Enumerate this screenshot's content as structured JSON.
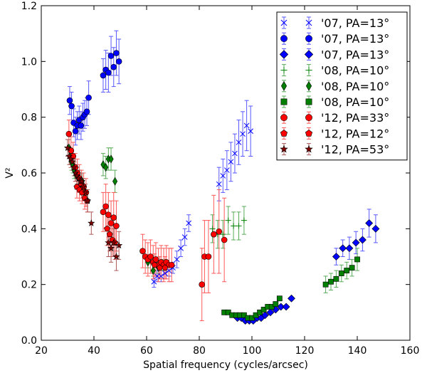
{
  "chart_data": {
    "type": "scatter",
    "title": "",
    "xlabel": "Spatial frequency (cycles/arcsec)",
    "ylabel": "V²",
    "xlim": [
      20,
      160
    ],
    "ylim": [
      0.0,
      1.2
    ],
    "xticks": [
      20,
      40,
      60,
      80,
      100,
      120,
      140,
      160
    ],
    "yticks": [
      0.0,
      0.2,
      0.4,
      0.6,
      0.8,
      1.0,
      1.2
    ],
    "xtick_labels": [
      "20",
      "40",
      "60",
      "80",
      "100",
      "120",
      "140",
      "160"
    ],
    "ytick_labels": [
      "0.0",
      "0.2",
      "0.4",
      "0.6",
      "0.8",
      "1.0",
      "1.2"
    ],
    "grid": false,
    "legend_position": "top-right",
    "series": [
      {
        "name": "'07, PA=13°",
        "color": "#0000ff",
        "marker": "x",
        "points": [
          {
            "x": 62.8,
            "y": 0.21,
            "err": 0.02
          },
          {
            "x": 64.0,
            "y": 0.23,
            "err": 0.02
          },
          {
            "x": 65.5,
            "y": 0.23,
            "err": 0.02
          },
          {
            "x": 67.0,
            "y": 0.24,
            "err": 0.02
          },
          {
            "x": 68.5,
            "y": 0.25,
            "err": 0.02
          },
          {
            "x": 70.0,
            "y": 0.26,
            "err": 0.02
          },
          {
            "x": 71.5,
            "y": 0.29,
            "err": 0.03
          },
          {
            "x": 73.0,
            "y": 0.33,
            "err": 0.03
          },
          {
            "x": 74.5,
            "y": 0.37,
            "err": 0.03
          },
          {
            "x": 76.0,
            "y": 0.42,
            "err": 0.03
          },
          {
            "x": 87.5,
            "y": 0.56,
            "err": 0.06
          },
          {
            "x": 89.0,
            "y": 0.59,
            "err": 0.06
          },
          {
            "x": 90.5,
            "y": 0.61,
            "err": 0.07
          },
          {
            "x": 92.0,
            "y": 0.64,
            "err": 0.07
          },
          {
            "x": 93.5,
            "y": 0.67,
            "err": 0.07
          },
          {
            "x": 95.0,
            "y": 0.71,
            "err": 0.08
          },
          {
            "x": 96.5,
            "y": 0.74,
            "err": 0.08
          },
          {
            "x": 98.0,
            "y": 0.77,
            "err": 0.09
          },
          {
            "x": 99.5,
            "y": 0.75,
            "err": 0.09
          }
        ]
      },
      {
        "name": "'07, PA=13°",
        "color": "#0000ff",
        "marker": "circle",
        "points": [
          {
            "x": 30.8,
            "y": 0.86,
            "err": 0.05
          },
          {
            "x": 31.5,
            "y": 0.84,
            "err": 0.05
          },
          {
            "x": 32.3,
            "y": 0.78,
            "err": 0.05
          },
          {
            "x": 33.0,
            "y": 0.75,
            "err": 0.05
          },
          {
            "x": 33.7,
            "y": 0.77,
            "err": 0.05
          },
          {
            "x": 34.4,
            "y": 0.79,
            "err": 0.05
          },
          {
            "x": 35.1,
            "y": 0.77,
            "err": 0.05
          },
          {
            "x": 35.8,
            "y": 0.8,
            "err": 0.05
          },
          {
            "x": 36.5,
            "y": 0.81,
            "err": 0.05
          },
          {
            "x": 37.3,
            "y": 0.82,
            "err": 0.05
          },
          {
            "x": 38.0,
            "y": 0.87,
            "err": 0.06
          },
          {
            "x": 43.5,
            "y": 0.95,
            "err": 0.06
          },
          {
            "x": 44.5,
            "y": 0.97,
            "err": 0.07
          },
          {
            "x": 45.5,
            "y": 0.96,
            "err": 0.07
          },
          {
            "x": 46.5,
            "y": 1.02,
            "err": 0.07
          },
          {
            "x": 47.5,
            "y": 0.98,
            "err": 0.07
          },
          {
            "x": 48.5,
            "y": 1.03,
            "err": 0.08
          },
          {
            "x": 49.5,
            "y": 1.0,
            "err": 0.08
          }
        ]
      },
      {
        "name": "'07, PA=13°",
        "color": "#0000ff",
        "marker": "diamond",
        "points": [
          {
            "x": 94.5,
            "y": 0.08,
            "err": 0.005
          },
          {
            "x": 96.0,
            "y": 0.08,
            "err": 0.005
          },
          {
            "x": 97.5,
            "y": 0.07,
            "err": 0.005
          },
          {
            "x": 99.0,
            "y": 0.07,
            "err": 0.005
          },
          {
            "x": 100.5,
            "y": 0.07,
            "err": 0.005
          },
          {
            "x": 102.0,
            "y": 0.08,
            "err": 0.005
          },
          {
            "x": 103.5,
            "y": 0.08,
            "err": 0.005
          },
          {
            "x": 105.0,
            "y": 0.09,
            "err": 0.005
          },
          {
            "x": 107.0,
            "y": 0.1,
            "err": 0.005
          },
          {
            "x": 109.0,
            "y": 0.11,
            "err": 0.005
          },
          {
            "x": 111.0,
            "y": 0.12,
            "err": 0.005
          },
          {
            "x": 113.0,
            "y": 0.12,
            "err": 0.005
          },
          {
            "x": 115.0,
            "y": 0.15,
            "err": 0.005
          },
          {
            "x": 132.0,
            "y": 0.3,
            "err": 0.03
          },
          {
            "x": 134.5,
            "y": 0.33,
            "err": 0.03
          },
          {
            "x": 137.0,
            "y": 0.33,
            "err": 0.04
          },
          {
            "x": 139.5,
            "y": 0.35,
            "err": 0.04
          },
          {
            "x": 142.0,
            "y": 0.36,
            "err": 0.04
          },
          {
            "x": 144.5,
            "y": 0.42,
            "err": 0.05
          },
          {
            "x": 147.0,
            "y": 0.4,
            "err": 0.05
          }
        ]
      },
      {
        "name": "'08, PA=10°",
        "color": "#008000",
        "marker": "plus",
        "points": [
          {
            "x": 85.0,
            "y": 0.4,
            "err": 0.05
          },
          {
            "x": 87.0,
            "y": 0.38,
            "err": 0.05
          },
          {
            "x": 89.0,
            "y": 0.38,
            "err": 0.05
          },
          {
            "x": 91.0,
            "y": 0.43,
            "err": 0.05
          },
          {
            "x": 93.0,
            "y": 0.41,
            "err": 0.05
          },
          {
            "x": 95.0,
            "y": 0.41,
            "err": 0.05
          },
          {
            "x": 97.0,
            "y": 0.43,
            "err": 0.05
          }
        ]
      },
      {
        "name": "'08, PA=10°",
        "color": "#008000",
        "marker": "thin-diamond",
        "points": [
          {
            "x": 30.5,
            "y": 0.69,
            "err": 0.03
          },
          {
            "x": 31.0,
            "y": 0.66,
            "err": 0.03
          },
          {
            "x": 31.5,
            "y": 0.64,
            "err": 0.03
          },
          {
            "x": 32.0,
            "y": 0.63,
            "err": 0.03
          },
          {
            "x": 32.5,
            "y": 0.61,
            "err": 0.03
          },
          {
            "x": 33.5,
            "y": 0.59,
            "err": 0.03
          },
          {
            "x": 34.5,
            "y": 0.58,
            "err": 0.03
          },
          {
            "x": 35.5,
            "y": 0.57,
            "err": 0.03
          },
          {
            "x": 43.5,
            "y": 0.63,
            "err": 0.04
          },
          {
            "x": 44.5,
            "y": 0.62,
            "err": 0.04
          },
          {
            "x": 45.5,
            "y": 0.65,
            "err": 0.04
          },
          {
            "x": 46.5,
            "y": 0.65,
            "err": 0.04
          },
          {
            "x": 48.0,
            "y": 0.57,
            "err": 0.04
          },
          {
            "x": 60.5,
            "y": 0.28,
            "err": 0.02
          },
          {
            "x": 62.5,
            "y": 0.25,
            "err": 0.02
          },
          {
            "x": 64.5,
            "y": 0.26,
            "err": 0.02
          },
          {
            "x": 66.5,
            "y": 0.27,
            "err": 0.02
          }
        ]
      },
      {
        "name": "'08, PA=10°",
        "color": "#008000",
        "marker": "square",
        "points": [
          {
            "x": 89.5,
            "y": 0.1,
            "err": 0.005
          },
          {
            "x": 91.0,
            "y": 0.1,
            "err": 0.005
          },
          {
            "x": 92.5,
            "y": 0.09,
            "err": 0.005
          },
          {
            "x": 94.0,
            "y": 0.09,
            "err": 0.005
          },
          {
            "x": 95.5,
            "y": 0.09,
            "err": 0.005
          },
          {
            "x": 97.0,
            "y": 0.09,
            "err": 0.005
          },
          {
            "x": 98.5,
            "y": 0.08,
            "err": 0.005
          },
          {
            "x": 100.0,
            "y": 0.08,
            "err": 0.005
          },
          {
            "x": 101.5,
            "y": 0.09,
            "err": 0.005
          },
          {
            "x": 103.0,
            "y": 0.1,
            "err": 0.005
          },
          {
            "x": 104.5,
            "y": 0.11,
            "err": 0.005
          },
          {
            "x": 106.0,
            "y": 0.12,
            "err": 0.005
          },
          {
            "x": 107.5,
            "y": 0.12,
            "err": 0.005
          },
          {
            "x": 109.0,
            "y": 0.13,
            "err": 0.005
          },
          {
            "x": 110.5,
            "y": 0.15,
            "err": 0.005
          },
          {
            "x": 128.0,
            "y": 0.2,
            "err": 0.03
          },
          {
            "x": 130.0,
            "y": 0.21,
            "err": 0.03
          },
          {
            "x": 132.0,
            "y": 0.22,
            "err": 0.03
          },
          {
            "x": 134.0,
            "y": 0.24,
            "err": 0.03
          },
          {
            "x": 136.0,
            "y": 0.25,
            "err": 0.03
          },
          {
            "x": 138.0,
            "y": 0.26,
            "err": 0.03
          },
          {
            "x": 140.0,
            "y": 0.29,
            "err": 0.04
          }
        ]
      },
      {
        "name": "'12, PA=33°",
        "color": "#ff0000",
        "marker": "circle",
        "points": [
          {
            "x": 30.5,
            "y": 0.74,
            "err": 0.05
          },
          {
            "x": 31.3,
            "y": 0.68,
            "err": 0.05
          },
          {
            "x": 32.1,
            "y": 0.66,
            "err": 0.05
          },
          {
            "x": 32.9,
            "y": 0.62,
            "err": 0.05
          },
          {
            "x": 33.7,
            "y": 0.6,
            "err": 0.05
          },
          {
            "x": 34.5,
            "y": 0.58,
            "err": 0.05
          },
          {
            "x": 35.3,
            "y": 0.56,
            "err": 0.05
          },
          {
            "x": 36.1,
            "y": 0.55,
            "err": 0.05
          },
          {
            "x": 37.0,
            "y": 0.53,
            "err": 0.05
          },
          {
            "x": 43.5,
            "y": 0.46,
            "err": 0.07
          },
          {
            "x": 44.5,
            "y": 0.48,
            "err": 0.08
          },
          {
            "x": 45.5,
            "y": 0.45,
            "err": 0.08
          },
          {
            "x": 46.5,
            "y": 0.42,
            "err": 0.08
          },
          {
            "x": 47.5,
            "y": 0.44,
            "err": 0.09
          },
          {
            "x": 48.5,
            "y": 0.41,
            "err": 0.09
          },
          {
            "x": 58.5,
            "y": 0.32,
            "err": 0.06
          },
          {
            "x": 59.5,
            "y": 0.3,
            "err": 0.06
          },
          {
            "x": 60.5,
            "y": 0.29,
            "err": 0.06
          },
          {
            "x": 61.5,
            "y": 0.3,
            "err": 0.06
          },
          {
            "x": 62.5,
            "y": 0.28,
            "err": 0.06
          },
          {
            "x": 63.5,
            "y": 0.29,
            "err": 0.06
          },
          {
            "x": 64.5,
            "y": 0.27,
            "err": 0.06
          },
          {
            "x": 65.5,
            "y": 0.28,
            "err": 0.06
          },
          {
            "x": 66.5,
            "y": 0.27,
            "err": 0.06
          },
          {
            "x": 67.5,
            "y": 0.28,
            "err": 0.06
          },
          {
            "x": 68.5,
            "y": 0.27,
            "err": 0.06
          },
          {
            "x": 69.5,
            "y": 0.27,
            "err": 0.06
          },
          {
            "x": 81.0,
            "y": 0.2,
            "err": 0.13
          },
          {
            "x": 82.0,
            "y": 0.3,
            "err": 0.13
          },
          {
            "x": 83.5,
            "y": 0.3,
            "err": 0.13
          },
          {
            "x": 85.5,
            "y": 0.38,
            "err": 0.14
          },
          {
            "x": 87.5,
            "y": 0.39,
            "err": 0.15
          },
          {
            "x": 89.5,
            "y": 0.36,
            "err": 0.15
          }
        ]
      },
      {
        "name": "'12, PA=12°",
        "color": "#ff0000",
        "marker": "pentagon",
        "points": [
          {
            "x": 33.5,
            "y": 0.55,
            "err": 0.04
          },
          {
            "x": 34.5,
            "y": 0.54,
            "err": 0.04
          },
          {
            "x": 35.5,
            "y": 0.53,
            "err": 0.04
          },
          {
            "x": 36.5,
            "y": 0.51,
            "err": 0.04
          },
          {
            "x": 37.5,
            "y": 0.5,
            "err": 0.04
          },
          {
            "x": 45.0,
            "y": 0.4,
            "err": 0.06
          },
          {
            "x": 46.0,
            "y": 0.38,
            "err": 0.06
          },
          {
            "x": 47.0,
            "y": 0.36,
            "err": 0.06
          },
          {
            "x": 48.0,
            "y": 0.35,
            "err": 0.06
          },
          {
            "x": 63.0,
            "y": 0.27,
            "err": 0.04
          },
          {
            "x": 65.0,
            "y": 0.26,
            "err": 0.04
          },
          {
            "x": 67.0,
            "y": 0.26,
            "err": 0.04
          }
        ]
      },
      {
        "name": "'12, PA=53°",
        "color": "#800000",
        "marker": "star",
        "points": [
          {
            "x": 30.0,
            "y": 0.69,
            "err": 0.03
          },
          {
            "x": 30.6,
            "y": 0.66,
            "err": 0.03
          },
          {
            "x": 31.2,
            "y": 0.65,
            "err": 0.03
          },
          {
            "x": 31.8,
            "y": 0.64,
            "err": 0.03
          },
          {
            "x": 32.4,
            "y": 0.62,
            "err": 0.03
          },
          {
            "x": 33.0,
            "y": 0.6,
            "err": 0.03
          },
          {
            "x": 33.6,
            "y": 0.59,
            "err": 0.03
          },
          {
            "x": 34.2,
            "y": 0.58,
            "err": 0.03
          },
          {
            "x": 34.8,
            "y": 0.57,
            "err": 0.03
          },
          {
            "x": 35.4,
            "y": 0.57,
            "err": 0.03
          },
          {
            "x": 36.0,
            "y": 0.55,
            "err": 0.03
          },
          {
            "x": 36.8,
            "y": 0.53,
            "err": 0.03
          },
          {
            "x": 37.6,
            "y": 0.5,
            "err": 0.04
          },
          {
            "x": 39.0,
            "y": 0.42,
            "err": 0.04
          },
          {
            "x": 45.5,
            "y": 0.35,
            "err": 0.05
          },
          {
            "x": 46.5,
            "y": 0.33,
            "err": 0.05
          },
          {
            "x": 47.5,
            "y": 0.35,
            "err": 0.05
          },
          {
            "x": 48.5,
            "y": 0.3,
            "err": 0.05
          },
          {
            "x": 49.5,
            "y": 0.34,
            "err": 0.05
          }
        ]
      }
    ]
  }
}
